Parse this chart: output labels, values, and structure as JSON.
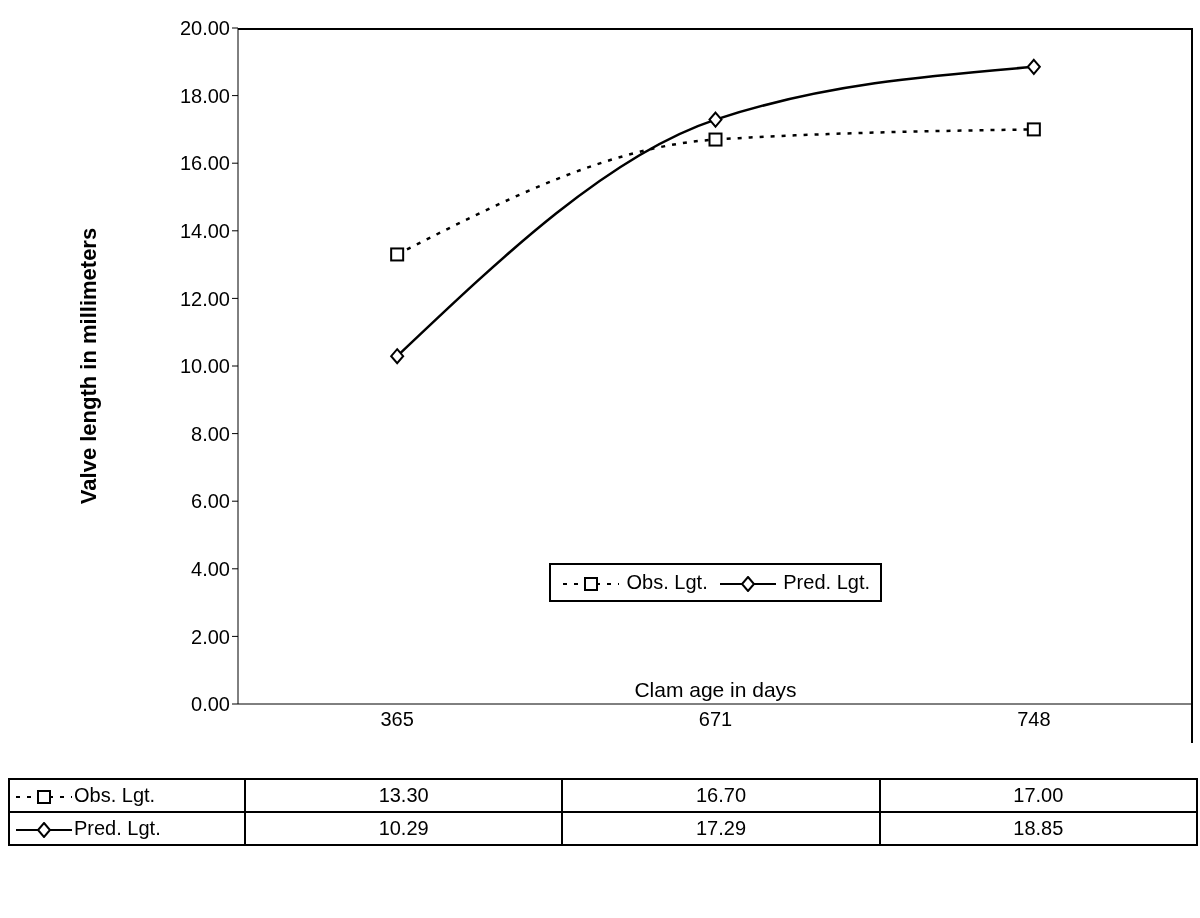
{
  "chart_data": {
    "type": "line",
    "xlabel": "Clam age in days",
    "ylabel": "Valve length in millimeters",
    "categories": [
      "365",
      "671",
      "748"
    ],
    "series": [
      {
        "name": "Obs. Lgt.",
        "color": "#000000",
        "values": [
          13.3,
          16.7,
          17.0
        ],
        "value_labels": [
          "13.30",
          "16.70",
          "17.00"
        ],
        "marker": "square",
        "line_style": "dotted"
      },
      {
        "name": "Pred. Lgt.",
        "color": "#000000",
        "values": [
          10.29,
          17.29,
          18.85
        ],
        "value_labels": [
          "10.29",
          "17.29",
          "18.85"
        ],
        "marker": "diamond",
        "line_style": "solid"
      }
    ],
    "ylim": [
      0,
      20
    ],
    "yticks": [
      {
        "value": 0,
        "label": "0.00"
      },
      {
        "value": 2,
        "label": "2.00"
      },
      {
        "value": 4,
        "label": "4.00"
      },
      {
        "value": 6,
        "label": "6.00"
      },
      {
        "value": 8,
        "label": "8.00"
      },
      {
        "value": 10,
        "label": "10.00"
      },
      {
        "value": 12,
        "label": "12.00"
      },
      {
        "value": 14,
        "label": "14.00"
      },
      {
        "value": 16,
        "label": "16.00"
      },
      {
        "value": 18,
        "label": "18.00"
      },
      {
        "value": 20,
        "label": "20.00"
      }
    ],
    "legend": "bottom"
  }
}
